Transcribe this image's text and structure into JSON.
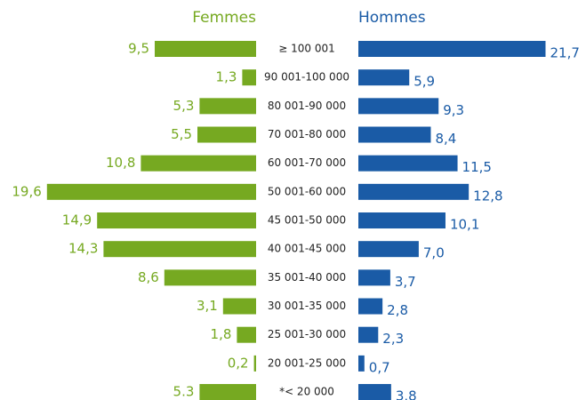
{
  "chart_data": {
    "type": "butterfly",
    "categories": [
      "≥ 100 001",
      "90 001-100 000",
      "80 001-90 000",
      "70 001-80 000",
      "60 001-70 000",
      "50 001-60 000",
      "45 001-50 000",
      "40 001-45 000",
      "35 001-40 000",
      "30 001-35 000",
      "25 001-30 000",
      "20 001-25 000",
      "*< 20 000"
    ],
    "series": [
      {
        "name": "Femmes",
        "color": "#76a921",
        "values": [
          9.5,
          1.3,
          5.3,
          5.5,
          10.8,
          19.6,
          14.9,
          14.3,
          8.6,
          3.1,
          1.8,
          0.2,
          5.3
        ],
        "value_labels": [
          "9,5",
          "1,3",
          "5,3",
          "5,5",
          "10,8",
          "19,6",
          "14,9",
          "14,3",
          "8,6",
          "3,1",
          "1,8",
          "0,2",
          "5.3"
        ]
      },
      {
        "name": "Hommes",
        "color": "#1a5ba6",
        "values": [
          21.7,
          5.9,
          9.3,
          8.4,
          11.5,
          12.8,
          10.1,
          7.0,
          3.7,
          2.8,
          2.3,
          0.7,
          3.8
        ],
        "value_labels": [
          "21,7",
          "5,9",
          "9,3",
          "8,4",
          "11,5",
          "12,8",
          "10,1",
          "7,0",
          "3,7",
          "2,8",
          "2,3",
          "0,7",
          "3.8"
        ]
      }
    ]
  }
}
